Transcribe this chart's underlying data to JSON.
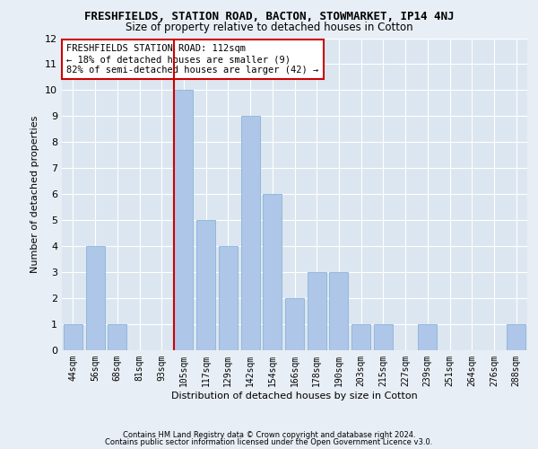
{
  "title1": "FRESHFIELDS, STATION ROAD, BACTON, STOWMARKET, IP14 4NJ",
  "title2": "Size of property relative to detached houses in Cotton",
  "xlabel": "Distribution of detached houses by size in Cotton",
  "ylabel": "Number of detached properties",
  "categories": [
    "44sqm",
    "56sqm",
    "68sqm",
    "81sqm",
    "93sqm",
    "105sqm",
    "117sqm",
    "129sqm",
    "142sqm",
    "154sqm",
    "166sqm",
    "178sqm",
    "190sqm",
    "203sqm",
    "215sqm",
    "227sqm",
    "239sqm",
    "251sqm",
    "264sqm",
    "276sqm",
    "288sqm"
  ],
  "values": [
    1,
    4,
    1,
    0,
    0,
    10,
    5,
    4,
    9,
    6,
    2,
    3,
    3,
    1,
    1,
    0,
    1,
    0,
    0,
    0,
    1
  ],
  "bar_color": "#aec6e8",
  "bar_edge_color": "#8ab4d8",
  "red_line_color": "#cc0000",
  "annotation_title": "FRESHFIELDS STATION ROAD: 112sqm",
  "annotation_line1": "← 18% of detached houses are smaller (9)",
  "annotation_line2": "82% of semi-detached houses are larger (42) →",
  "annotation_box_color": "#ffffff",
  "annotation_box_edge": "#cc0000",
  "ylim": [
    0,
    12
  ],
  "yticks": [
    0,
    1,
    2,
    3,
    4,
    5,
    6,
    7,
    8,
    9,
    10,
    11,
    12
  ],
  "red_line_bar_index": 5,
  "footer1": "Contains HM Land Registry data © Crown copyright and database right 2024.",
  "footer2": "Contains public sector information licensed under the Open Government Licence v3.0.",
  "background_color": "#e8eef5",
  "plot_background": "#dce6f0"
}
